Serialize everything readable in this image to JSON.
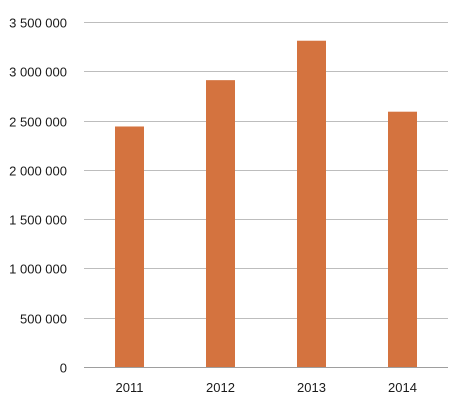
{
  "chart_data": {
    "type": "bar",
    "categories": [
      "2011",
      "2012",
      "2013",
      "2014"
    ],
    "values": [
      2440000,
      2910000,
      3310000,
      2590000
    ],
    "ylim": [
      0,
      3500000
    ],
    "yticks": [
      0,
      500000,
      1000000,
      1500000,
      2000000,
      2500000,
      3000000,
      3500000
    ],
    "ytick_labels": [
      "0",
      "500 000",
      "1 000 000",
      "1 500 000",
      "2 000 000",
      "2 500 000",
      "3 000 000",
      "3 500 000"
    ],
    "bar_color": "#d4733f",
    "grid": true,
    "legend": "none"
  }
}
